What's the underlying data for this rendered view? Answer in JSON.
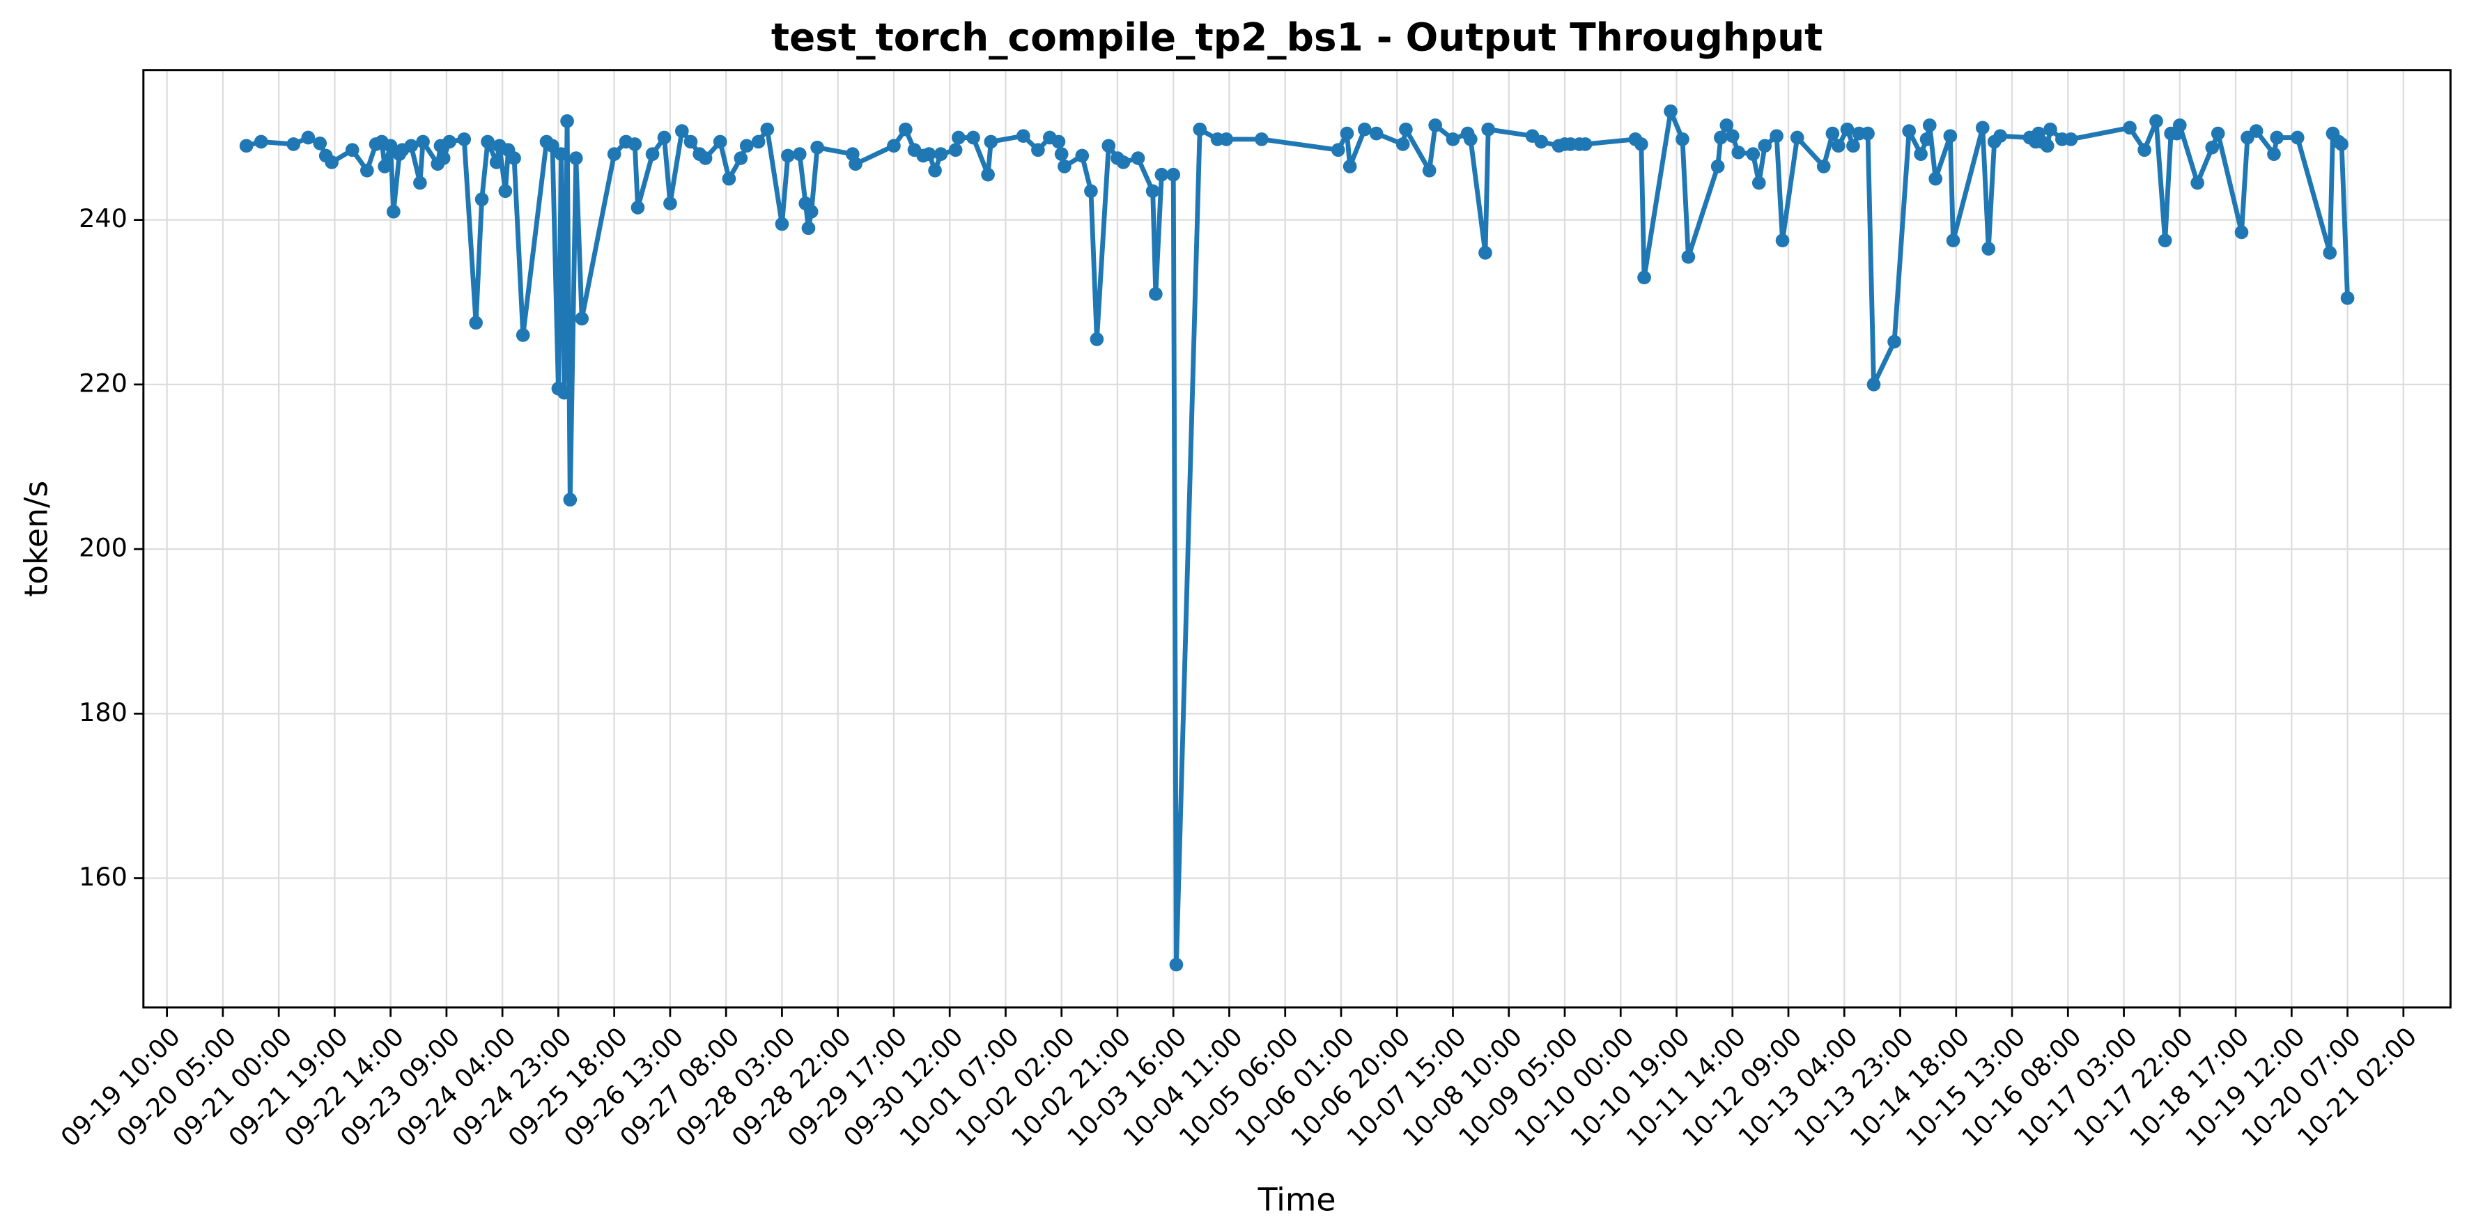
{
  "chart_data": {
    "type": "line",
    "title": "test_torch_compile_tp2_bs1 - Output Throughput",
    "x_label": "Time",
    "y_label": "token/s",
    "color": "#1f77b4",
    "grid": true,
    "xlim": [
      "09-19 02:00",
      "10-21 18:00"
    ],
    "xticks": [
      "09-19 10:00",
      "09-20 05:00",
      "09-21 00:00",
      "09-21 19:00",
      "09-22 14:00",
      "09-23 09:00",
      "09-24 04:00",
      "09-24 23:00",
      "09-25 18:00",
      "09-26 13:00",
      "09-27 08:00",
      "09-28 03:00",
      "09-28 22:00",
      "09-29 17:00",
      "09-30 12:00",
      "10-01 07:00",
      "10-02 02:00",
      "10-02 21:00",
      "10-03 16:00",
      "10-04 11:00",
      "10-05 06:00",
      "10-06 01:00",
      "10-06 20:00",
      "10-07 15:00",
      "10-08 10:00",
      "10-09 05:00",
      "10-10 00:00",
      "10-10 19:00",
      "10-11 14:00",
      "10-12 09:00",
      "10-13 04:00",
      "10-13 23:00",
      "10-14 18:00",
      "10-15 13:00",
      "10-16 08:00",
      "10-17 03:00",
      "10-17 22:00",
      "10-18 17:00",
      "10-19 12:00",
      "10-20 07:00",
      "10-21 02:00"
    ],
    "ylim": [
      144.3,
      258.2
    ],
    "yticks": [
      160,
      180,
      200,
      220,
      240
    ],
    "x": [
      "09-20 13:00",
      "09-20 18:00",
      "09-21 05:00",
      "09-21 10:00",
      "09-21 14:00",
      "09-21 16:00",
      "09-21 18:00",
      "09-22 01:00",
      "09-22 06:00",
      "09-22 09:00",
      "09-22 11:00",
      "09-22 12:00",
      "09-22 14:00",
      "09-22 15:00",
      "09-22 17:00",
      "09-22 18:00",
      "09-22 21:00",
      "09-23 00:00",
      "09-23 01:00",
      "09-23 06:00",
      "09-23 07:00",
      "09-23 08:00",
      "09-23 10:00",
      "09-23 15:00",
      "09-23 19:00",
      "09-23 21:00",
      "09-23 23:00",
      "09-24 02:00",
      "09-24 03:00",
      "09-24 05:00",
      "09-24 06:00",
      "09-24 08:00",
      "09-24 11:00",
      "09-24 19:00",
      "09-24 21:00",
      "09-24 23:00",
      "09-25 00:00",
      "09-25 01:00",
      "09-25 02:00",
      "09-25 03:00",
      "09-25 05:00",
      "09-25 07:00",
      "09-25 18:00",
      "09-25 22:00",
      "09-26 01:00",
      "09-26 02:00",
      "09-26 07:00",
      "09-26 11:00",
      "09-26 13:00",
      "09-26 17:00",
      "09-26 20:00",
      "09-26 23:00",
      "09-27 01:00",
      "09-27 06:00",
      "09-27 09:00",
      "09-27 13:00",
      "09-27 15:00",
      "09-27 19:00",
      "09-27 22:00",
      "09-28 03:00",
      "09-28 05:00",
      "09-28 09:00",
      "09-28 11:00",
      "09-28 12:00",
      "09-28 13:00",
      "09-28 15:00",
      "09-29 03:00",
      "09-29 04:00",
      "09-29 17:00",
      "09-29 21:00",
      "09-30 00:00",
      "09-30 03:00",
      "09-30 05:00",
      "09-30 07:00",
      "09-30 09:00",
      "09-30 14:00",
      "09-30 15:00",
      "09-30 20:00",
      "10-01 01:00",
      "10-01 02:00",
      "10-01 13:00",
      "10-01 18:00",
      "10-01 22:00",
      "10-02 01:00",
      "10-02 02:00",
      "10-02 03:00",
      "10-02 09:00",
      "10-02 12:00",
      "10-02 14:00",
      "10-02 18:00",
      "10-02 21:00",
      "10-02 23:00",
      "10-03 04:00",
      "10-03 09:00",
      "10-03 10:00",
      "10-03 12:00",
      "10-03 16:00",
      "10-03 17:00",
      "10-04 01:00",
      "10-04 07:00",
      "10-04 10:00",
      "10-04 22:00",
      "10-06 00:00",
      "10-06 03:00",
      "10-06 04:00",
      "10-06 09:00",
      "10-06 13:00",
      "10-06 22:00",
      "10-06 23:00",
      "10-07 07:00",
      "10-07 09:00",
      "10-07 15:00",
      "10-07 20:00",
      "10-07 21:00",
      "10-08 02:00",
      "10-08 03:00",
      "10-08 18:00",
      "10-08 21:00",
      "10-09 03:00",
      "10-09 05:00",
      "10-09 07:00",
      "10-09 10:00",
      "10-09 12:00",
      "10-10 05:00",
      "10-10 07:00",
      "10-10 08:00",
      "10-10 17:00",
      "10-10 21:00",
      "10-10 23:00",
      "10-11 09:00",
      "10-11 10:00",
      "10-11 12:00",
      "10-11 14:00",
      "10-11 16:00",
      "10-11 21:00",
      "10-11 23:00",
      "10-12 01:00",
      "10-12 05:00",
      "10-12 07:00",
      "10-12 12:00",
      "10-12 21:00",
      "10-13 00:00",
      "10-13 02:00",
      "10-13 05:00",
      "10-13 07:00",
      "10-13 09:00",
      "10-13 12:00",
      "10-13 14:00",
      "10-13 21:00",
      "10-14 02:00",
      "10-14 06:00",
      "10-14 08:00",
      "10-14 09:00",
      "10-14 11:00",
      "10-14 16:00",
      "10-14 17:00",
      "10-15 03:00",
      "10-15 05:00",
      "10-15 07:00",
      "10-15 09:00",
      "10-15 19:00",
      "10-15 21:00",
      "10-15 22:00",
      "10-15 23:00",
      "10-16 01:00",
      "10-16 02:00",
      "10-16 06:00",
      "10-16 09:00",
      "10-17 05:00",
      "10-17 10:00",
      "10-17 14:00",
      "10-17 17:00",
      "10-17 19:00",
      "10-17 21:00",
      "10-17 22:00",
      "10-18 04:00",
      "10-18 09:00",
      "10-18 11:00",
      "10-18 19:00",
      "10-18 21:00",
      "10-19 00:00",
      "10-19 06:00",
      "10-19 07:00",
      "10-19 14:00",
      "10-20 01:00",
      "10-20 02:00",
      "10-20 04:00",
      "10-20 05:00",
      "10-20 07:00"
    ],
    "values": [
      249,
      249.5,
      249.2,
      250,
      249.3,
      247.8,
      247,
      248.5,
      246,
      249.2,
      249.5,
      246.5,
      249,
      241,
      248,
      248.5,
      249,
      244.5,
      249.5,
      246.8,
      249,
      247.5,
      249.5,
      249.8,
      227.5,
      242.5,
      249.5,
      247,
      249,
      243.5,
      248.5,
      247.5,
      226,
      249.5,
      249,
      219.5,
      248,
      219,
      252,
      206,
      247.5,
      228,
      248,
      249.5,
      249.2,
      241.5,
      248,
      250,
      242,
      250.8,
      249.5,
      248,
      247.5,
      249.5,
      245,
      247.5,
      249,
      249.5,
      251,
      239.5,
      247.8,
      248,
      242,
      239,
      241,
      248.8,
      248,
      246.8,
      249,
      251,
      248.5,
      247.8,
      248,
      246,
      248,
      248.5,
      250,
      250,
      245.5,
      249.5,
      250.2,
      248.5,
      250,
      249.5,
      248,
      246.5,
      247.8,
      243.5,
      225.5,
      249,
      247.5,
      247,
      247.5,
      243.5,
      231,
      245.5,
      245.5,
      149.5,
      251,
      249.8,
      249.8,
      249.8,
      248.5,
      250.5,
      246.5,
      251,
      250.5,
      249.2,
      251,
      246,
      251.5,
      249.8,
      250.5,
      249.8,
      236,
      251,
      250.2,
      249.5,
      249,
      249.2,
      249.2,
      249.2,
      249.2,
      249.8,
      249.2,
      233,
      253.2,
      249.8,
      235.5,
      246.5,
      250,
      251.5,
      250.2,
      248.2,
      248,
      244.5,
      249,
      250.2,
      237.5,
      250,
      246.5,
      250.5,
      249,
      251,
      249,
      250.5,
      250.5,
      220,
      225.2,
      250.8,
      248,
      249.8,
      251.5,
      245,
      250.2,
      237.5,
      251.2,
      236.5,
      249.5,
      250.2,
      250,
      249.5,
      250.5,
      249.5,
      249,
      251,
      249.8,
      249.8,
      251.2,
      248.5,
      252,
      237.5,
      250.5,
      250.5,
      251.5,
      244.5,
      248.8,
      250.5,
      238.5,
      250,
      250.8,
      248,
      250,
      250,
      236,
      250.5,
      249.5,
      249.2,
      230.5
    ]
  }
}
